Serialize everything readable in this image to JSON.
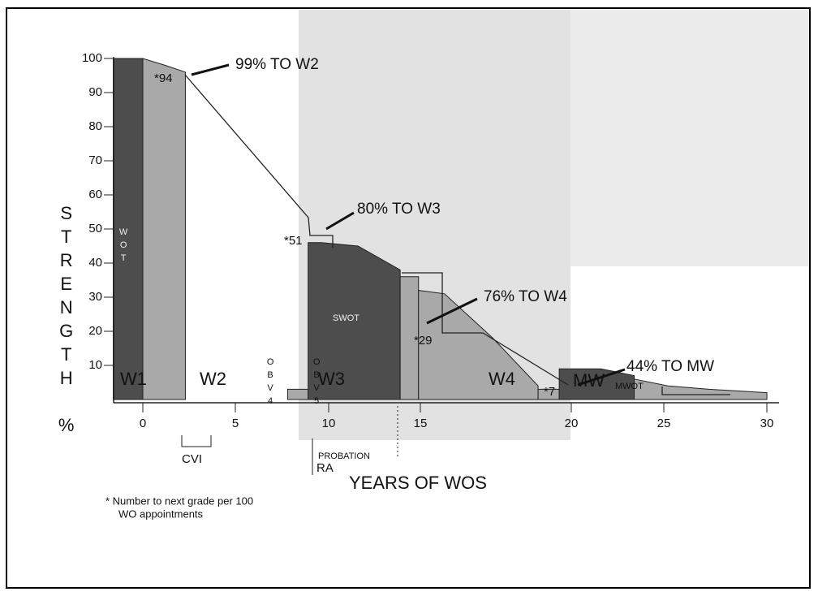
{
  "chart_data": {
    "type": "area",
    "xlabel": "YEARS OF WOS",
    "ylabel": "STRENGTH %",
    "xlim": [
      -2,
      31
    ],
    "ylim": [
      0,
      100
    ],
    "xticks": [
      0,
      5,
      10,
      15,
      20,
      25,
      30
    ],
    "yticks": [
      10,
      20,
      30,
      40,
      50,
      60,
      70,
      80,
      90,
      100
    ],
    "series": [
      {
        "name": "WOT",
        "color": "#4d4d4d",
        "x": [
          -1.6,
          0
        ],
        "values": [
          100,
          100
        ]
      },
      {
        "color": "#a9a9a9",
        "x": [
          0,
          1.2,
          2.3
        ],
        "values": [
          100,
          98,
          96
        ]
      },
      {
        "color": "#a9a9a9",
        "x": [
          7.8,
          8.9
        ],
        "values": [
          3,
          3
        ]
      },
      {
        "name": "SWOT",
        "color": "#4d4d4d",
        "x": [
          8.9,
          9.6,
          11.6,
          13.9
        ],
        "values": [
          46,
          46,
          45,
          38
        ]
      },
      {
        "color": "#a9a9a9",
        "x": [
          13.9,
          14.9
        ],
        "values": [
          36,
          36
        ]
      },
      {
        "color": "#a9a9a9",
        "x": [
          14.9,
          15.8,
          17.4,
          18.9
        ],
        "values": [
          32,
          31,
          18,
          4
        ]
      },
      {
        "color": "#a9a9a9",
        "x": [
          18.9,
          19.6
        ],
        "values": [
          3,
          3
        ]
      },
      {
        "name": "MWOT",
        "color": "#4d4d4d",
        "x": [
          19.6,
          21.6,
          23.4
        ],
        "values": [
          9,
          9,
          7
        ]
      },
      {
        "color": "#a9a9a9",
        "x": [
          23.4,
          25.2,
          27.2,
          30
        ],
        "values": [
          6,
          4,
          3,
          2
        ]
      }
    ],
    "grade_labels": [
      "W1",
      "W2",
      "W3",
      "W4",
      "MW"
    ],
    "annotations": [
      "99% TO W2",
      "80% TO W3",
      "76% TO W4",
      "44% TO MW"
    ],
    "asterisk_labels": [
      "*94",
      "*51",
      "*29",
      "*7"
    ],
    "obv_labels": [
      "OBV4",
      "OBV5"
    ],
    "other_labels": [
      "CVI",
      "PROBATION",
      "RA"
    ],
    "footnote": [
      "* Number to next grade per 100",
      "WO appointments"
    ]
  }
}
